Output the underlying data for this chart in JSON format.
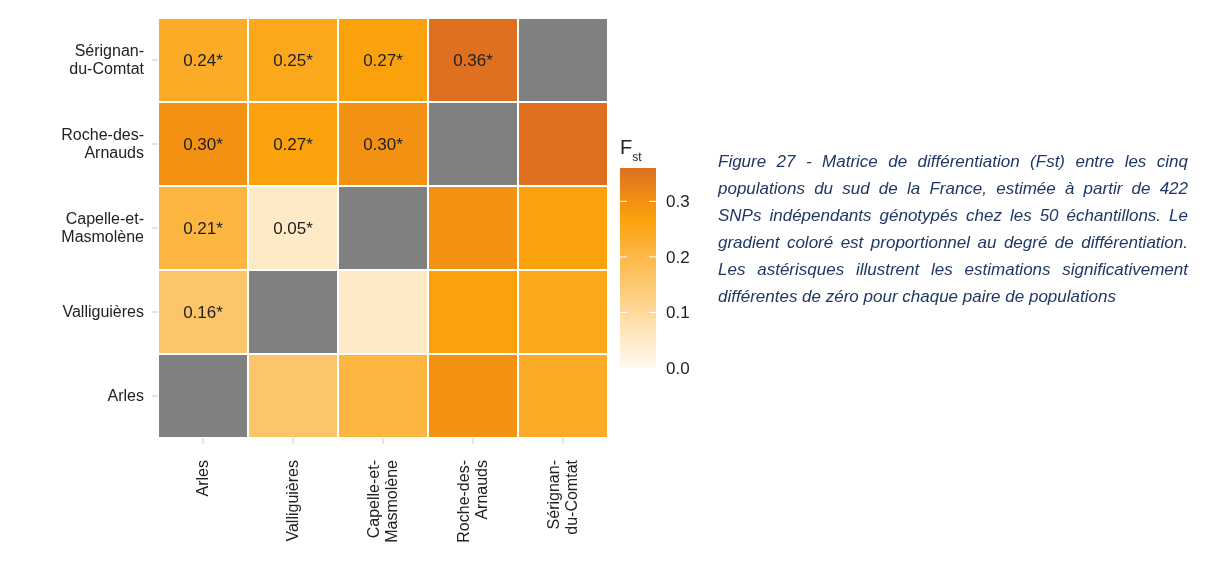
{
  "chart_data": {
    "type": "heatmap",
    "categories": [
      "Arles",
      "Valliguières",
      "Capelle-et-Masmolène",
      "Roche-des-Arnauds",
      "Sérignan-du-Comtat"
    ],
    "y_categories": [
      "Sérignan-du-Comtat",
      "Roche-des-Arnauds",
      "Capelle-et-Masmolène",
      "Valliguières",
      "Arles"
    ],
    "cells": [
      [
        0.24,
        0.25,
        0.27,
        0.36,
        null
      ],
      [
        0.3,
        0.27,
        0.3,
        null,
        0.36
      ],
      [
        0.21,
        0.05,
        null,
        0.3,
        0.27
      ],
      [
        0.16,
        null,
        0.05,
        0.27,
        0.25
      ],
      [
        null,
        0.16,
        0.21,
        0.3,
        0.24
      ]
    ],
    "cell_labels": [
      [
        "0.24*",
        "0.25*",
        "0.27*",
        "0.36*",
        null
      ],
      [
        "0.30*",
        "0.27*",
        "0.30*",
        null,
        null
      ],
      [
        "0.21*",
        "0.05*",
        null,
        null,
        null
      ],
      [
        "0.16*",
        null,
        null,
        null,
        null
      ],
      [
        null,
        null,
        null,
        null,
        null
      ]
    ],
    "clim": [
      0,
      0.36
    ],
    "cticks": [
      {
        "value": 0,
        "label": "0.0"
      },
      0.1,
      0.2,
      0.3
    ],
    "clabel": "F$_{st}$",
    "annotations": [
      "Figure 27 - Matrice de différentiation (Fst) entre les cinq populations du sud de la France, estimée à partir de 422 SNPs indépendants génotypés chez les 50 échantillons. Le gradient coloré est proportionnel au degré de différentiation. Les astérisques illustrent les estimations significativement différentes de zéro pour chaque paire de populations"
    ]
  }
}
